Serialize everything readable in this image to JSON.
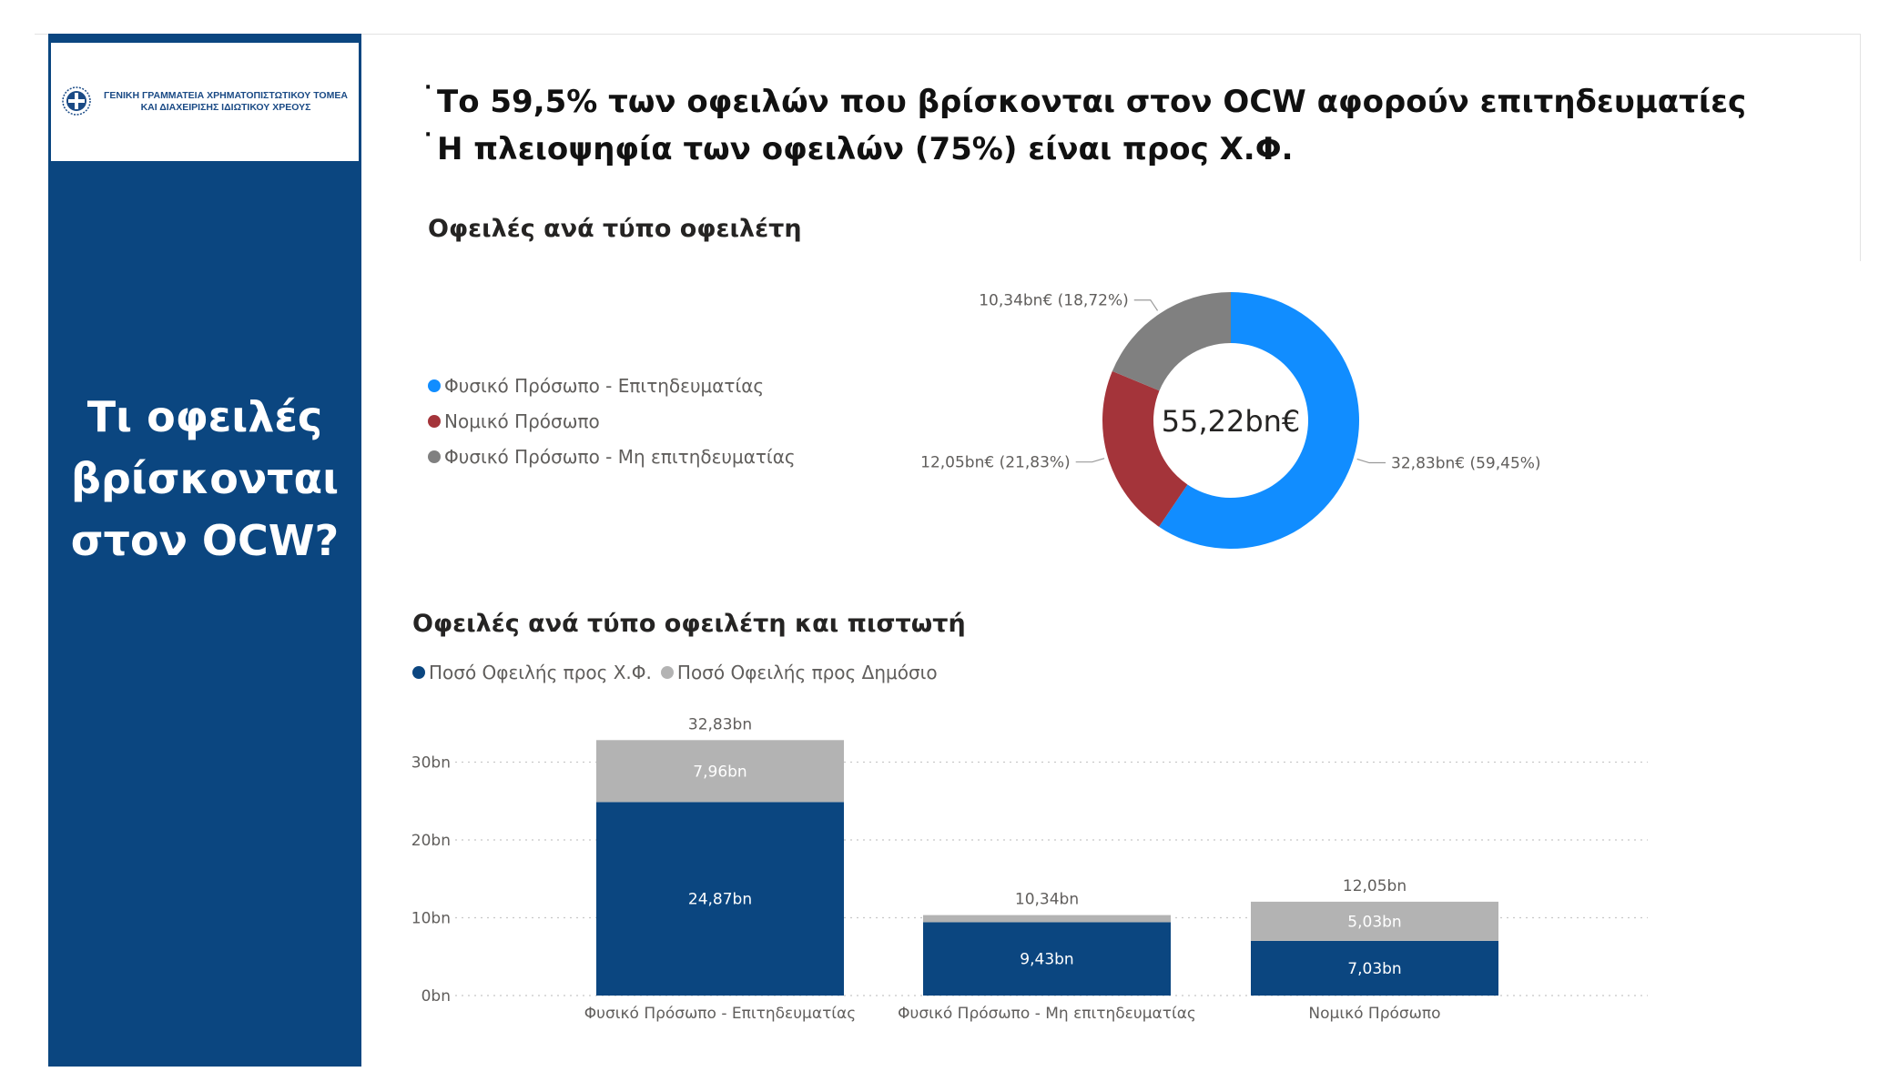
{
  "logo": {
    "line1": "ΓΕΝΙΚΗ ΓΡΑΜΜΑΤΕΙΑ ΧΡΗΜΑΤΟΠΙΣΤΩΤΙΚΟΥ ΤΟΜΕΑ",
    "line2": "ΚΑΙ ΔΙΑΧΕΙΡΙΣΗΣ ΙΔΙΩΤΙΚΟΥ ΧΡΕΟΥΣ",
    "emblem": "greek-emblem-icon"
  },
  "sidebar": {
    "title_lines": [
      "Τι οφειλές",
      "βρίσκονται",
      "στον OCW?"
    ]
  },
  "headlines": [
    "Το 59,5% των οφειλών που βρίσκονται στον OCW αφορούν επιτηδευματίες",
    "Η πλειοψηφία των οφειλών (75%) είναι προς Χ.Φ."
  ],
  "colors": {
    "sidebar": "#0b4680",
    "blue": "#118dff",
    "red": "#a4343a",
    "gray": "#808080",
    "navy": "#0b4680",
    "lightgray": "#b3b3b3"
  },
  "chart_data": [
    {
      "type": "pie",
      "variant": "donut",
      "title": "Οφειλές ανά τύπο οφειλέτη",
      "center_label": "55,22bn€",
      "legend": [
        "Φυσικό Πρόσωπο - Επιτηδευματίας",
        "Νομικό Πρόσωπο",
        "Φυσικό Πρόσωπο - Μη επιτηδευματίας"
      ],
      "legend_position": "left",
      "slices": [
        {
          "name": "Φυσικό Πρόσωπο - Επιτηδευματίας",
          "value": 32.83,
          "percent": 59.45,
          "label": "32,83bn€ (59,45%)",
          "color": "#118dff"
        },
        {
          "name": "Νομικό Πρόσωπο",
          "value": 12.05,
          "percent": 21.83,
          "label": "12,05bn€ (21,83%)",
          "color": "#a4343a"
        },
        {
          "name": "Φυσικό Πρόσωπο - Μη επιτηδευματίας",
          "value": 10.34,
          "percent": 18.72,
          "label": "10,34bn€ (18,72%)",
          "color": "#808080"
        }
      ]
    },
    {
      "type": "bar",
      "variant": "stacked",
      "title": "Οφειλές ανά τύπο οφειλέτη και πιστωτή",
      "categories": [
        "Φυσικό Πρόσωπο - Επιτηδευματίας",
        "Φυσικό Πρόσωπο - Μη επιτηδευματίας",
        "Νομικό Πρόσωπο"
      ],
      "series": [
        {
          "name": "Ποσό Οφειλής προς Χ.Φ.",
          "values": [
            24.87,
            9.43,
            7.03
          ],
          "labels": [
            "24,87bn",
            "9,43bn",
            "7,03bn"
          ],
          "color": "#0b4680"
        },
        {
          "name": "Ποσό Οφειλής προς Δημόσιο",
          "values": [
            7.96,
            0.91,
            5.03
          ],
          "labels": [
            "7,96bn",
            "",
            "5,03bn"
          ],
          "color": "#b3b3b3"
        }
      ],
      "totals": [
        32.83,
        10.34,
        12.05
      ],
      "total_labels": [
        "32,83bn",
        "10,34bn",
        "12,05bn"
      ],
      "yticks": [
        0,
        10,
        20,
        30
      ],
      "ytick_labels": [
        "0bn",
        "10bn",
        "20bn",
        "30bn"
      ],
      "ylim": [
        0,
        33
      ],
      "grid": true,
      "legend_position": "top-left"
    }
  ]
}
